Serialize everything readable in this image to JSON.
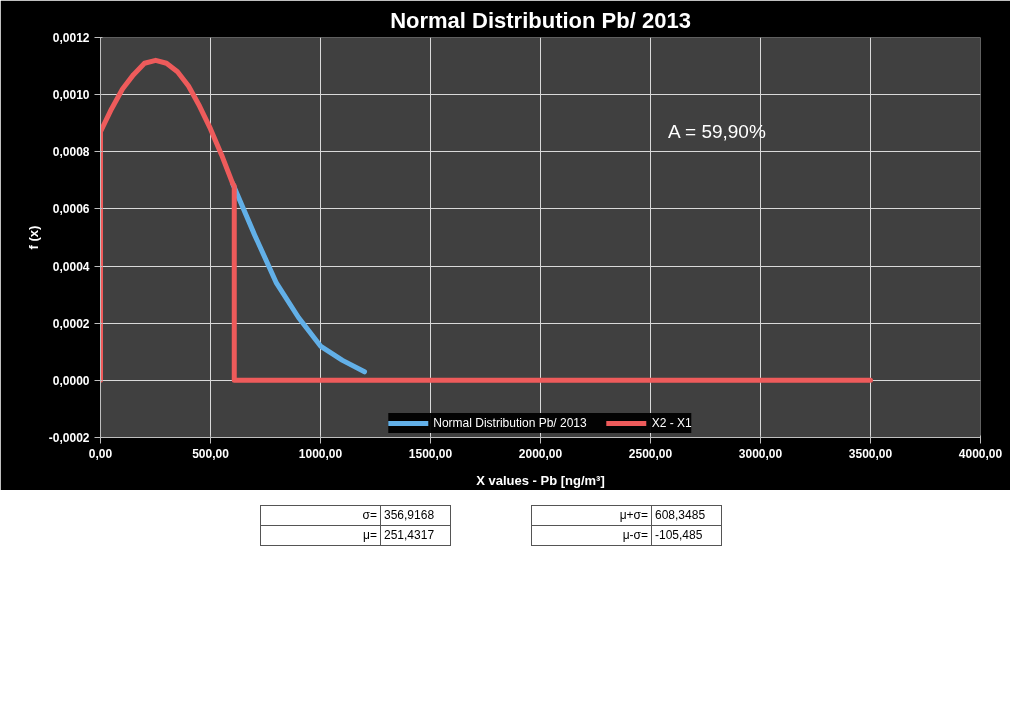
{
  "chart_data": {
    "type": "line",
    "title": "Normal Distribution Pb/ 2013",
    "xlabel": "X values - Pb [ng/m³]",
    "ylabel": "f (x)",
    "series": [
      {
        "name": "Normal Distribution Pb/ 2013",
        "color": "#62b0e8",
        "x": [
          600,
          700,
          800,
          900,
          1000,
          1100,
          1200
        ],
        "values": [
          0.00069,
          0.00051,
          0.00034,
          0.00022,
          0.00012,
          7e-05,
          3e-05
        ]
      },
      {
        "name": "X2 - X1",
        "color": "#ee5b5b",
        "x": [
          0,
          0,
          50,
          100,
          150,
          200,
          251,
          300,
          350,
          400,
          450,
          500,
          550,
          600,
          608,
          608,
          3500
        ],
        "values": [
          0,
          0.00087,
          0.00095,
          0.00102,
          0.00107,
          0.00111,
          0.00112,
          0.00111,
          0.00108,
          0.00103,
          0.00096,
          0.00088,
          0.00079,
          0.00069,
          0.00068,
          0,
          0
        ]
      }
    ],
    "xlim": [
      0,
      4000
    ],
    "xticks": [
      {
        "value": 0,
        "label": "0,00"
      },
      {
        "value": 500,
        "label": "500,00"
      },
      {
        "value": 1000,
        "label": "1000,00"
      },
      {
        "value": 1500,
        "label": "1500,00"
      },
      {
        "value": 2000,
        "label": "2000,00"
      },
      {
        "value": 2500,
        "label": "2500,00"
      },
      {
        "value": 3000,
        "label": "3000,00"
      },
      {
        "value": 3500,
        "label": "3500,00"
      },
      {
        "value": 4000,
        "label": "4000,00"
      }
    ],
    "ylim": [
      -0.0002,
      0.0012
    ],
    "yticks": [
      {
        "value": -0.0002,
        "label": "-0,0002"
      },
      {
        "value": 0,
        "label": "0,0000"
      },
      {
        "value": 0.0002,
        "label": "0,0002"
      },
      {
        "value": 0.0004,
        "label": "0,0004"
      },
      {
        "value": 0.0006,
        "label": "0,0006"
      },
      {
        "value": 0.0008,
        "label": "0,0008"
      },
      {
        "value": 0.001,
        "label": "0,0010"
      },
      {
        "value": 0.0012,
        "label": "0,0012"
      }
    ],
    "grid": true,
    "legend": "bottom",
    "marker": "none",
    "line_style": "solid",
    "annotations": [
      "A = 59,90%",
      "σ= 356,9168",
      "μ= 251,4317",
      "μ+σ= 608,3485",
      "μ-σ= -105,485"
    ]
  }
}
